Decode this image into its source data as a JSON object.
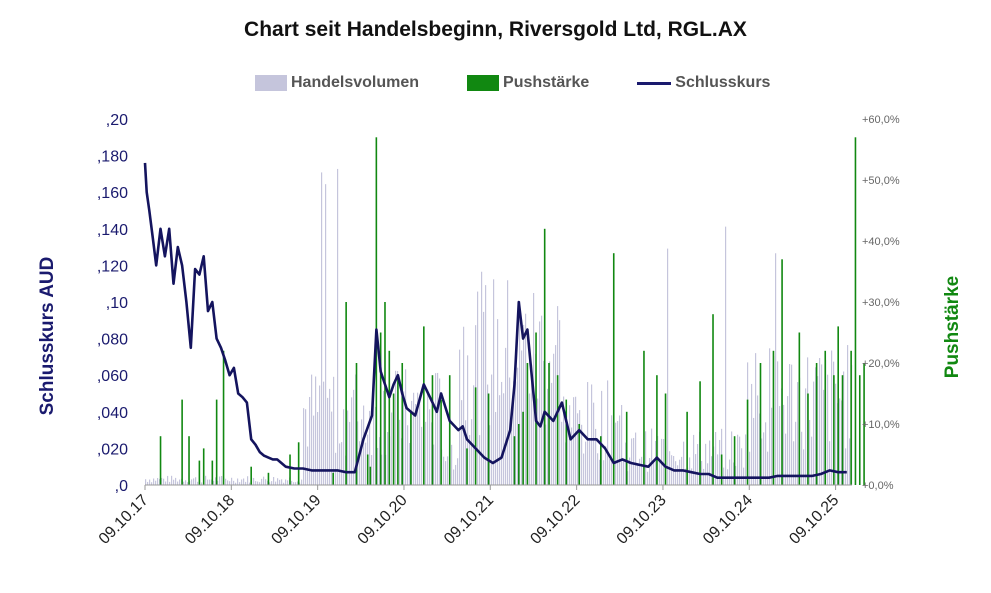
{
  "chart_data": {
    "type": "line",
    "title": "Chart seit Handelsbeginn, Riversgold Ltd,  RGL.AX",
    "ylabel": "Schlusskurs AUD",
    "y2label": "Pushstärke",
    "ylim": [
      0,
      0.2
    ],
    "y2lim": [
      0,
      60
    ],
    "yticks": [
      ",0",
      ",020",
      ",040",
      ",060",
      ",080",
      ",10",
      ",120",
      ",140",
      ",160",
      ",180",
      ",20"
    ],
    "y2ticks": [
      "+0,0%",
      "+10,0%",
      "+20,0%",
      "+30,0%",
      "+40,0%",
      "+50,0%",
      "+60,0%"
    ],
    "xticks": [
      "09.10.17",
      "09.10.18",
      "09.10.19",
      "09.10.20",
      "09.10.21",
      "09.10.22",
      "09.10.23",
      "09.10.24",
      "09.10.25"
    ],
    "legend": [
      "Handelsvolumen",
      "Pushstärke",
      "Schlusskurs"
    ],
    "series": [
      {
        "name": "Schlusskurs",
        "x": [
          2017.77,
          2017.79,
          2017.82,
          2017.86,
          2017.9,
          2017.95,
          2018.0,
          2018.05,
          2018.1,
          2018.15,
          2018.2,
          2018.25,
          2018.3,
          2018.35,
          2018.4,
          2018.45,
          2018.5,
          2018.55,
          2018.6,
          2018.65,
          2018.7,
          2018.75,
          2018.8,
          2018.85,
          2018.9,
          2018.95,
          2019.0,
          2019.05,
          2019.1,
          2019.15,
          2019.2,
          2019.25,
          2019.3,
          2019.35,
          2019.4,
          2019.5,
          2019.6,
          2019.7,
          2019.8,
          2019.9,
          2020.0,
          2020.1,
          2020.2,
          2020.3,
          2020.4,
          2020.45,
          2020.5,
          2020.55,
          2020.6,
          2020.65,
          2020.7,
          2020.75,
          2020.8,
          2020.9,
          2021.0,
          2021.1,
          2021.15,
          2021.2,
          2021.3,
          2021.4,
          2021.45,
          2021.5,
          2021.6,
          2021.7,
          2021.8,
          2021.9,
          2022.0,
          2022.05,
          2022.1,
          2022.15,
          2022.2,
          2022.25,
          2022.3,
          2022.35,
          2022.4,
          2022.5,
          2022.6,
          2022.7,
          2022.8,
          2022.9,
          2023.0,
          2023.1,
          2023.2,
          2023.3,
          2023.4,
          2023.5,
          2023.6,
          2023.7,
          2023.8,
          2023.9,
          2024.0,
          2024.1,
          2024.2,
          2024.3,
          2024.4,
          2024.5,
          2024.6,
          2024.7,
          2024.8,
          2024.9,
          2025.0,
          2025.1,
          2025.2,
          2025.3,
          2025.4,
          2025.5,
          2025.6,
          2025.7,
          2025.8,
          2025.9
        ],
        "values": [
          0.176,
          0.16,
          0.15,
          0.135,
          0.12,
          0.14,
          0.125,
          0.14,
          0.11,
          0.13,
          0.12,
          0.1,
          0.075,
          0.118,
          0.115,
          0.125,
          0.095,
          0.1,
          0.08,
          0.075,
          0.068,
          0.06,
          0.064,
          0.05,
          0.048,
          0.045,
          0.025,
          0.022,
          0.018,
          0.016,
          0.015,
          0.014,
          0.014,
          0.012,
          0.01,
          0.009,
          0.009,
          0.008,
          0.008,
          0.008,
          0.008,
          0.007,
          0.007,
          0.025,
          0.038,
          0.085,
          0.062,
          0.055,
          0.048,
          0.055,
          0.06,
          0.05,
          0.042,
          0.038,
          0.055,
          0.045,
          0.04,
          0.05,
          0.035,
          0.03,
          0.032,
          0.025,
          0.02,
          0.015,
          0.012,
          0.015,
          0.03,
          0.055,
          0.1,
          0.08,
          0.085,
          0.06,
          0.035,
          0.032,
          0.04,
          0.035,
          0.045,
          0.025,
          0.03,
          0.025,
          0.025,
          0.02,
          0.012,
          0.014,
          0.012,
          0.011,
          0.01,
          0.015,
          0.01,
          0.008,
          0.008,
          0.007,
          0.006,
          0.006,
          0.004,
          0.004,
          0.004,
          0.004,
          0.004,
          0.004,
          0.004,
          0.005,
          0.005,
          0.005,
          0.005,
          0.005,
          0.006,
          0.008,
          0.007,
          0.007
        ]
      },
      {
        "name": "Pushstärke",
        "x": [
          2017.95,
          2018.2,
          2018.28,
          2018.4,
          2018.45,
          2018.55,
          2018.6,
          2018.68,
          2019.0,
          2019.2,
          2019.45,
          2019.55,
          2019.95,
          2020.1,
          2020.22,
          2020.35,
          2020.38,
          2020.45,
          2020.5,
          2020.55,
          2020.6,
          2020.65,
          2020.7,
          2020.75,
          2020.85,
          2021.0,
          2021.1,
          2021.2,
          2021.3,
          2021.5,
          2021.6,
          2021.75,
          2022.05,
          2022.1,
          2022.15,
          2022.2,
          2022.3,
          2022.4,
          2022.45,
          2022.55,
          2022.65,
          2022.8,
          2023.05,
          2023.2,
          2023.35,
          2023.55,
          2023.7,
          2023.8,
          2024.05,
          2024.2,
          2024.35,
          2024.45,
          2024.6,
          2024.75,
          2024.9,
          2025.05,
          2025.15,
          2025.35,
          2025.45,
          2025.55,
          2025.65,
          2025.75,
          2025.8,
          2025.85,
          2025.95,
          2026.0,
          2026.05,
          2026.1
        ],
        "values": [
          8,
          14,
          8,
          4,
          6,
          4,
          14,
          22,
          3,
          2,
          5,
          7,
          2,
          30,
          20,
          5,
          3,
          57,
          25,
          30,
          22,
          15,
          18,
          20,
          12,
          26,
          18,
          14,
          18,
          6,
          16,
          15,
          8,
          10,
          12,
          20,
          25,
          42,
          20,
          18,
          14,
          10,
          8,
          38,
          12,
          22,
          18,
          15,
          12,
          17,
          28,
          5,
          8,
          14,
          20,
          22,
          37,
          25,
          15,
          20,
          22,
          18,
          26,
          18,
          22,
          57,
          18,
          20
        ]
      }
    ]
  }
}
